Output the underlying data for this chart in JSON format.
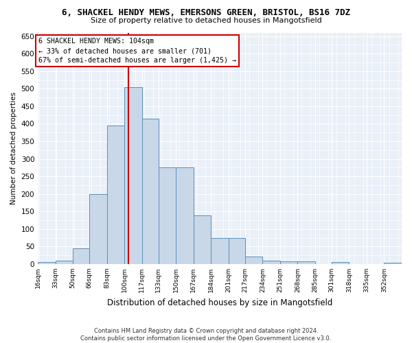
{
  "title": "6, SHACKEL HENDY MEWS, EMERSONS GREEN, BRISTOL, BS16 7DZ",
  "subtitle": "Size of property relative to detached houses in Mangotsfield",
  "xlabel": "Distribution of detached houses by size in Mangotsfield",
  "ylabel": "Number of detached properties",
  "footer_line1": "Contains HM Land Registry data © Crown copyright and database right 2024.",
  "footer_line2": "Contains public sector information licensed under the Open Government Licence v3.0.",
  "annotation_title": "6 SHACKEL HENDY MEWS: 104sqm",
  "annotation_line2": "← 33% of detached houses are smaller (701)",
  "annotation_line3": "67% of semi-detached houses are larger (1,425) →",
  "property_size": 104,
  "bar_color": "#c8d8e8",
  "bar_edge_color": "#5b8db8",
  "vline_color": "#cc0000",
  "annotation_box_color": "#cc0000",
  "bg_color": "#eaf0f8",
  "ylim": [
    0,
    660
  ],
  "yticks": [
    0,
    50,
    100,
    150,
    200,
    250,
    300,
    350,
    400,
    450,
    500,
    550,
    600,
    650
  ],
  "categories": [
    "16sqm",
    "33sqm",
    "50sqm",
    "66sqm",
    "83sqm",
    "100sqm",
    "117sqm",
    "133sqm",
    "150sqm",
    "167sqm",
    "184sqm",
    "201sqm",
    "217sqm",
    "234sqm",
    "251sqm",
    "268sqm",
    "285sqm",
    "301sqm",
    "318sqm",
    "335sqm",
    "352sqm"
  ],
  "values": [
    5,
    10,
    45,
    200,
    395,
    505,
    415,
    275,
    275,
    138,
    75,
    75,
    22,
    10,
    8,
    8,
    0,
    5,
    0,
    0,
    3
  ],
  "bin_edges": [
    16,
    33,
    50,
    66,
    83,
    100,
    117,
    133,
    150,
    167,
    184,
    201,
    217,
    234,
    251,
    268,
    285,
    301,
    318,
    335,
    352,
    369
  ]
}
